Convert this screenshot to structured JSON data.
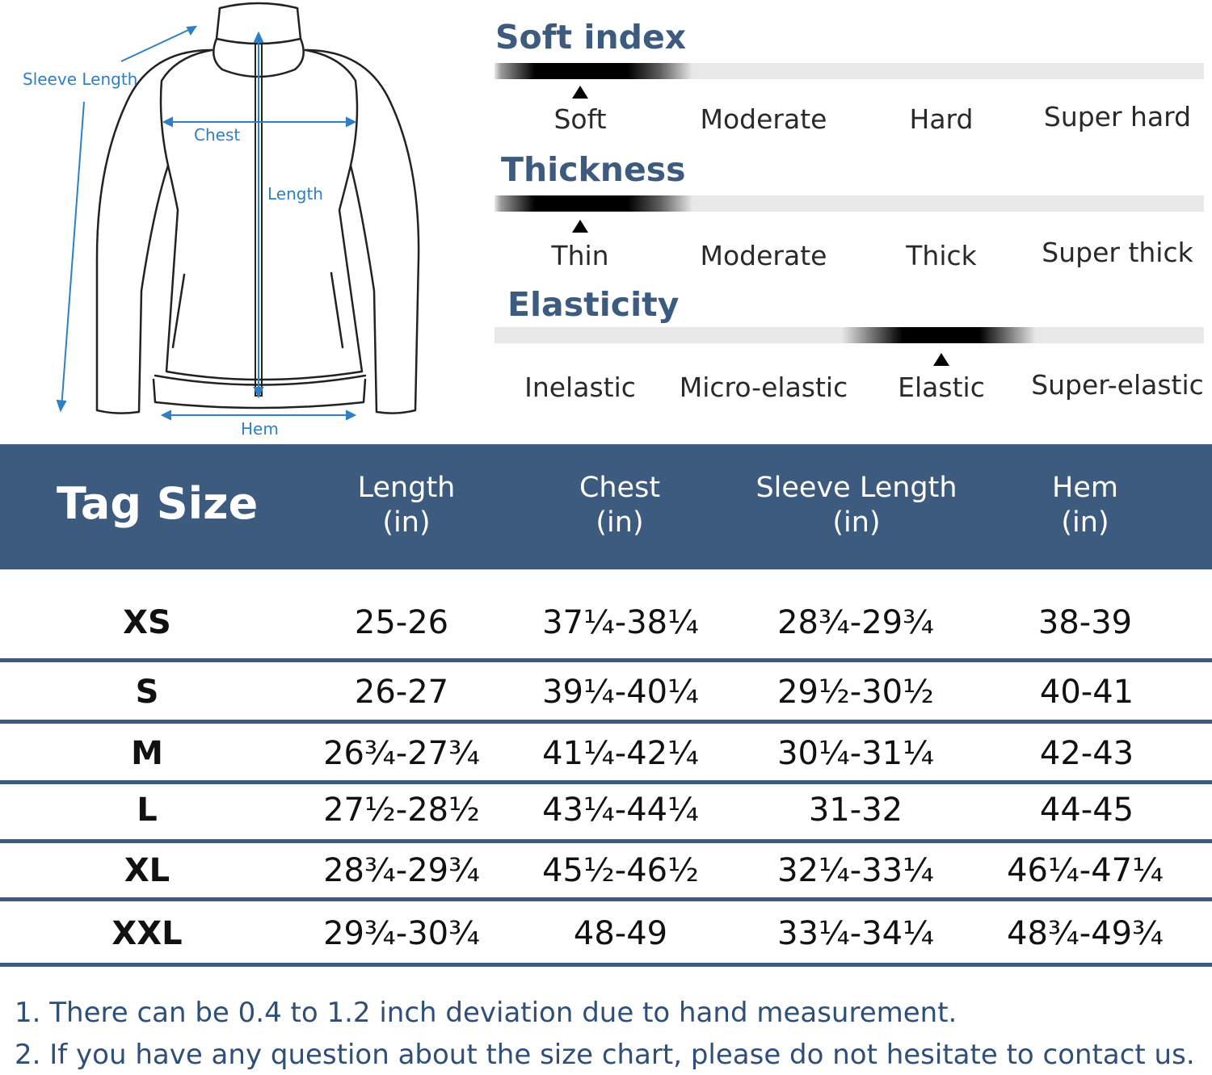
{
  "diagram": {
    "labels": {
      "sleeve_length": "Sleeve Length",
      "chest": "Chest",
      "length": "Length",
      "hem": "Hem"
    },
    "line_color": "#2f7fc4"
  },
  "scales": [
    {
      "title": "Soft index",
      "options": [
        "Soft",
        "Moderate",
        "Hard",
        "Super hard"
      ],
      "selected_index": 0
    },
    {
      "title": "Thickness",
      "options": [
        "Thin",
        "Moderate",
        "Thick",
        "Super thick"
      ],
      "selected_index": 0
    },
    {
      "title": "Elasticity",
      "options": [
        "Inelastic",
        "Micro-elastic",
        "Elastic",
        "Super-elastic"
      ],
      "selected_index": 2
    }
  ],
  "table": {
    "header_color": "#3d5a7f",
    "corner_label": "Tag Size",
    "columns": [
      {
        "name": "Length",
        "unit": "(in)"
      },
      {
        "name": "Chest",
        "unit": "(in)"
      },
      {
        "name": "Sleeve Length",
        "unit": "(in)"
      },
      {
        "name": "Hem",
        "unit": "(in)"
      }
    ],
    "rows": [
      {
        "size": "XS",
        "values": [
          "25-26",
          "37¼-38¼",
          "28¾-29¾",
          "38-39"
        ]
      },
      {
        "size": "S",
        "values": [
          "26-27",
          "39¼-40¼",
          "29½-30½",
          "40-41"
        ]
      },
      {
        "size": "M",
        "values": [
          "26¾-27¾",
          "41¼-42¼",
          "30¼-31¼",
          "42-43"
        ]
      },
      {
        "size": "L",
        "values": [
          "27½-28½",
          "43¼-44¼",
          "31-32",
          "44-45"
        ]
      },
      {
        "size": "XL",
        "values": [
          "28¾-29¾",
          "45½-46½",
          "32¼-33¼",
          "46¼-47¼"
        ]
      },
      {
        "size": "XXL",
        "values": [
          "29¾-30¾",
          "48-49",
          "33¼-34¼",
          "48¾-49¾"
        ]
      }
    ]
  },
  "notes": [
    "1. There can be 0.4 to 1.2 inch deviation due to hand measurement.",
    "2. If you have any question about the size chart, please do not hesitate to contact us."
  ]
}
